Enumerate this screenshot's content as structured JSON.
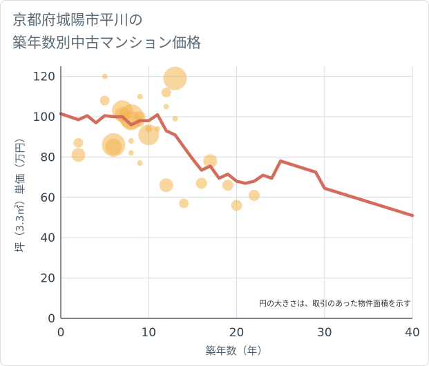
{
  "title_line1": "京都府城陽市平川の",
  "title_line2": "築年数別中古マンション価格",
  "chart_data": {
    "type": "scatter+line",
    "xlabel": "築年数（年）",
    "ylabel": "坪（3.3㎡）単価（万円）",
    "xlim": [
      0,
      40
    ],
    "ylim": [
      0,
      125
    ],
    "xticks": [
      0,
      10,
      20,
      30,
      40
    ],
    "yticks": [
      0,
      20,
      40,
      60,
      80,
      100,
      120
    ],
    "grid": true,
    "note": "円の大きさは、取引のあった物件面積を示す",
    "bubble_color": "#f3b44c",
    "line_color": "#d36c5b",
    "bubbles": [
      {
        "x": 2,
        "y": 87,
        "s": 7
      },
      {
        "x": 2,
        "y": 81,
        "s": 10
      },
      {
        "x": 5,
        "y": 120,
        "s": 4
      },
      {
        "x": 5,
        "y": 108,
        "s": 7
      },
      {
        "x": 6,
        "y": 86,
        "s": 17
      },
      {
        "x": 6,
        "y": 85,
        "s": 12
      },
      {
        "x": 7,
        "y": 103,
        "s": 15
      },
      {
        "x": 7,
        "y": 101,
        "s": 11
      },
      {
        "x": 8,
        "y": 100,
        "s": 18
      },
      {
        "x": 8,
        "y": 98,
        "s": 14
      },
      {
        "x": 8,
        "y": 88,
        "s": 4
      },
      {
        "x": 8,
        "y": 82,
        "s": 4
      },
      {
        "x": 9,
        "y": 110,
        "s": 4
      },
      {
        "x": 9,
        "y": 100,
        "s": 8
      },
      {
        "x": 9,
        "y": 97,
        "s": 6
      },
      {
        "x": 9,
        "y": 77,
        "s": 4
      },
      {
        "x": 10,
        "y": 94,
        "s": 5
      },
      {
        "x": 10,
        "y": 91,
        "s": 15
      },
      {
        "x": 11,
        "y": 94,
        "s": 4
      },
      {
        "x": 12,
        "y": 112,
        "s": 7
      },
      {
        "x": 12,
        "y": 105,
        "s": 4
      },
      {
        "x": 12,
        "y": 66,
        "s": 10
      },
      {
        "x": 13,
        "y": 119,
        "s": 17
      },
      {
        "x": 13,
        "y": 99,
        "s": 4
      },
      {
        "x": 14,
        "y": 57,
        "s": 7
      },
      {
        "x": 16,
        "y": 67,
        "s": 8
      },
      {
        "x": 17,
        "y": 78,
        "s": 10
      },
      {
        "x": 19,
        "y": 66,
        "s": 8
      },
      {
        "x": 20,
        "y": 56,
        "s": 8
      },
      {
        "x": 22,
        "y": 61,
        "s": 8
      }
    ],
    "line": {
      "x": [
        0,
        1,
        2,
        3,
        4,
        5,
        6,
        7,
        8,
        9,
        10,
        11,
        12,
        13,
        14,
        15,
        16,
        17,
        18,
        19,
        20,
        21,
        22,
        23,
        24,
        25,
        29,
        30,
        40
      ],
      "y": [
        101.5,
        100,
        98.5,
        100.5,
        97,
        100.5,
        100,
        100,
        96,
        98,
        98,
        101,
        93,
        91,
        85,
        79,
        73.5,
        75.5,
        69.5,
        71.5,
        68,
        67,
        68,
        71,
        69.5,
        78,
        72.5,
        64.5,
        51
      ]
    }
  }
}
